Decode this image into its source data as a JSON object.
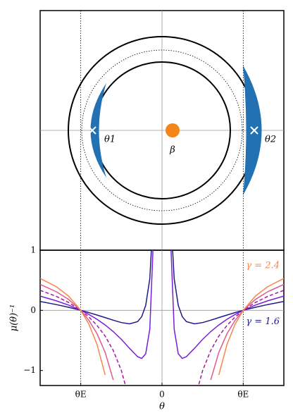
{
  "lens_plane": {
    "image_labels": [
      "θ1",
      "θ2"
    ],
    "source_label": "β"
  },
  "chart_data": {
    "type": "line",
    "x_label": "θ",
    "y_label": "μ(θ)⁻¹",
    "xlim": [
      -1.5,
      1.5
    ],
    "ylim": [
      -1.25,
      1
    ],
    "xticks": [
      {
        "value": -1,
        "label": "θE"
      },
      0,
      {
        "value": 1,
        "label": "θE"
      }
    ],
    "yticks": [
      {
        "value": -1,
        "label": "−1"
      },
      0,
      1
    ],
    "x": [
      -1.5,
      -1.3,
      -1.15,
      -1,
      -0.9,
      -0.8,
      -0.7,
      -0.6,
      -0.5,
      -0.4,
      -0.3,
      -0.25,
      -0.2,
      -0.15,
      -0.1,
      0,
      0.1,
      0.15,
      0.2,
      0.25,
      0.3,
      0.4,
      0.5,
      0.6,
      0.7,
      0.8,
      0.9,
      1,
      1.15,
      1.3,
      1.5
    ],
    "series": [
      {
        "name": "γ = 1.6",
        "color": "#1f1a8a",
        "values": [
          0.148,
          0.095,
          0.051,
          0,
          -0.037,
          -0.078,
          -0.12,
          -0.164,
          -0.203,
          -0.225,
          -0.187,
          -0.105,
          0.083,
          0.527,
          1.768,
          null,
          1.768,
          0.527,
          0.083,
          -0.105,
          -0.187,
          -0.225,
          -0.203,
          -0.164,
          -0.12,
          -0.078,
          -0.037,
          0,
          0.051,
          0.095,
          0.148
        ]
      },
      {
        "color": "#7a1fd6",
        "values": [
          0.237,
          0.158,
          0.087,
          0,
          -0.069,
          -0.148,
          -0.243,
          -0.353,
          -0.483,
          -0.631,
          -0.771,
          -0.8,
          -0.721,
          -0.313,
          1.391,
          null,
          1.391,
          -0.313,
          -0.721,
          -0.8,
          -0.771,
          -0.631,
          -0.483,
          -0.353,
          -0.243,
          -0.148,
          -0.069,
          0,
          0.087,
          0.158,
          0.237
        ]
      },
      {
        "color": "#a5179e",
        "dash": true,
        "values": [
          0.333,
          0.231,
          0.13,
          0,
          -0.111,
          -0.25,
          -0.429,
          -0.667,
          -1,
          -1.5,
          null,
          null,
          null,
          null,
          null,
          null,
          null,
          null,
          null,
          null,
          null,
          -1.5,
          -1,
          -0.667,
          -0.429,
          -0.25,
          -0.111,
          0,
          0.13,
          0.231,
          0.333
        ]
      },
      {
        "color": "#e05a8c",
        "values": [
          0.432,
          0.309,
          0.181,
          0,
          -0.166,
          -0.387,
          -0.698,
          -1.158,
          null,
          null,
          null,
          null,
          null,
          null,
          null,
          null,
          null,
          null,
          null,
          null,
          null,
          null,
          null,
          -1.158,
          -0.698,
          -0.387,
          -0.166,
          0,
          0.181,
          0.309,
          0.432
        ]
      },
      {
        "name": "γ = 2.4",
        "color": "#f5874e",
        "values": [
          0.531,
          0.392,
          0.237,
          0,
          -0.231,
          -0.566,
          -1.073,
          null,
          null,
          null,
          null,
          null,
          null,
          null,
          null,
          null,
          null,
          null,
          null,
          null,
          null,
          null,
          null,
          null,
          -1.073,
          -0.566,
          -0.231,
          0,
          0.237,
          0.392,
          0.531
        ]
      }
    ]
  }
}
